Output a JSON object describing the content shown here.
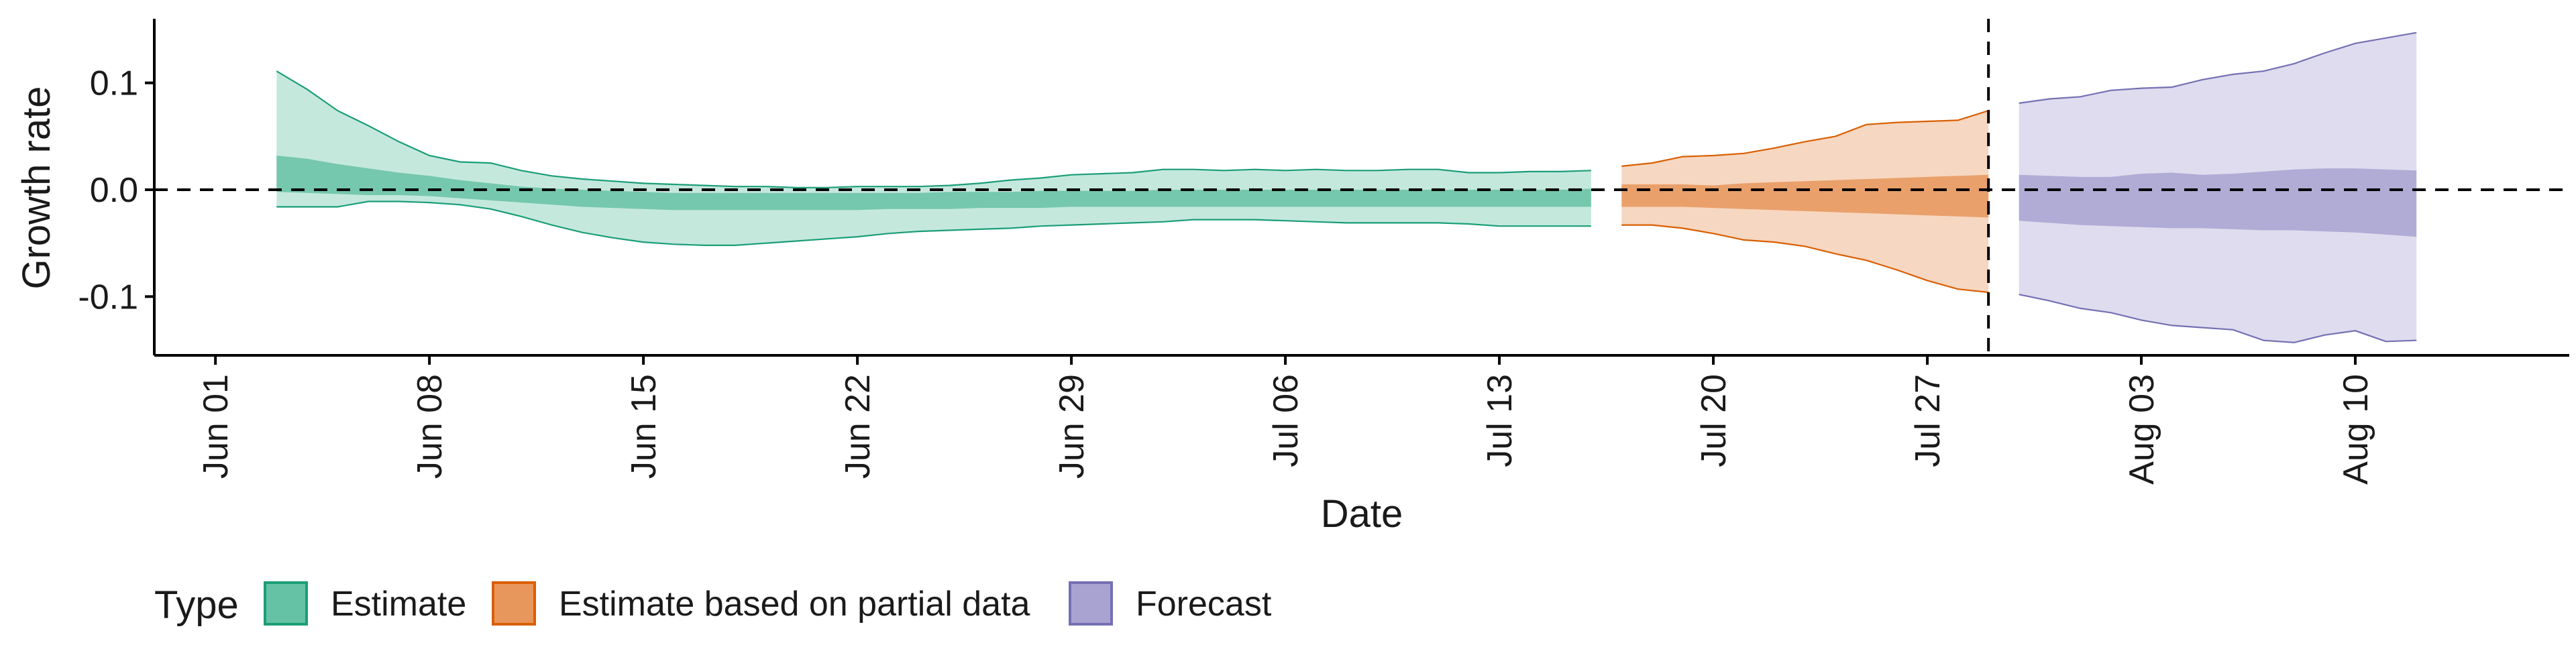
{
  "chart_data": {
    "type": "area",
    "xlabel": "Date",
    "ylabel": "Growth rate",
    "ylim": [
      -0.155,
      0.16
    ],
    "xlim": [
      "2020-05-30",
      "2020-08-17"
    ],
    "x_ticks": [
      "2020-06-01",
      "2020-06-08",
      "2020-06-15",
      "2020-06-22",
      "2020-06-29",
      "2020-07-06",
      "2020-07-13",
      "2020-07-20",
      "2020-07-27",
      "2020-08-03",
      "2020-08-10"
    ],
    "x_tick_labels": [
      "Jun 01",
      "Jun 08",
      "Jun 15",
      "Jun 22",
      "Jun 29",
      "Jul 06",
      "Jul 13",
      "Jul 20",
      "Jul 27",
      "Aug 03",
      "Aug 10"
    ],
    "y_ticks": [
      -0.1,
      0.0,
      0.1
    ],
    "y_tick_labels": [
      "-0.1",
      "0.0",
      "0.1"
    ],
    "reference_lines": [
      {
        "axis": "y",
        "value": 0.0,
        "style": "dashed"
      },
      {
        "axis": "x",
        "value": "2020-07-29",
        "style": "dashed"
      }
    ],
    "grid": false,
    "legend": {
      "title": "Type",
      "position": "bottom-left",
      "items": [
        {
          "label": "Estimate",
          "fill": "#66c2a5",
          "stroke": "#1b9e77"
        },
        {
          "label": "Estimate based on partial data",
          "fill": "#e8975c",
          "stroke": "#d95f02"
        },
        {
          "label": "Forecast",
          "fill": "#a9a3d1",
          "stroke": "#7570b3"
        }
      ]
    },
    "series": [
      {
        "type": "Estimate",
        "color": "#1b9e77",
        "x": [
          "2020-06-03",
          "2020-06-04",
          "2020-06-05",
          "2020-06-06",
          "2020-06-07",
          "2020-06-08",
          "2020-06-09",
          "2020-06-10",
          "2020-06-11",
          "2020-06-12",
          "2020-06-13",
          "2020-06-14",
          "2020-06-15",
          "2020-06-16",
          "2020-06-17",
          "2020-06-18",
          "2020-06-19",
          "2020-06-20",
          "2020-06-21",
          "2020-06-22",
          "2020-06-23",
          "2020-06-24",
          "2020-06-25",
          "2020-06-26",
          "2020-06-27",
          "2020-06-28",
          "2020-06-29",
          "2020-06-30",
          "2020-07-01",
          "2020-07-02",
          "2020-07-03",
          "2020-07-04",
          "2020-07-05",
          "2020-07-06",
          "2020-07-07",
          "2020-07-08",
          "2020-07-09",
          "2020-07-10",
          "2020-07-11",
          "2020-07-12",
          "2020-07-13",
          "2020-07-14",
          "2020-07-15",
          "2020-07-16"
        ],
        "outer_lower": [
          -0.016,
          -0.016,
          -0.016,
          -0.011,
          -0.011,
          -0.012,
          -0.014,
          -0.018,
          -0.025,
          -0.033,
          -0.04,
          -0.045,
          -0.049,
          -0.051,
          -0.052,
          -0.052,
          -0.05,
          -0.048,
          -0.046,
          -0.044,
          -0.041,
          -0.039,
          -0.038,
          -0.037,
          -0.036,
          -0.034,
          -0.033,
          -0.032,
          -0.031,
          -0.03,
          -0.028,
          -0.028,
          -0.028,
          -0.029,
          -0.03,
          -0.031,
          -0.031,
          -0.031,
          -0.031,
          -0.032,
          -0.034,
          -0.034,
          -0.034,
          -0.034
        ],
        "outer_upper": [
          0.111,
          0.094,
          0.074,
          0.06,
          0.045,
          0.032,
          0.026,
          0.025,
          0.018,
          0.013,
          0.01,
          0.008,
          0.006,
          0.005,
          0.004,
          0.003,
          0.003,
          0.002,
          0.002,
          0.003,
          0.003,
          0.003,
          0.004,
          0.006,
          0.009,
          0.011,
          0.014,
          0.015,
          0.016,
          0.019,
          0.019,
          0.018,
          0.019,
          0.018,
          0.019,
          0.018,
          0.018,
          0.019,
          0.019,
          0.016,
          0.016,
          0.017,
          0.017,
          0.018
        ],
        "inner_lower": [
          -0.002,
          -0.003,
          -0.004,
          -0.005,
          -0.005,
          -0.006,
          -0.008,
          -0.01,
          -0.012,
          -0.014,
          -0.016,
          -0.017,
          -0.018,
          -0.019,
          -0.019,
          -0.019,
          -0.019,
          -0.019,
          -0.019,
          -0.019,
          -0.018,
          -0.018,
          -0.018,
          -0.017,
          -0.017,
          -0.017,
          -0.016,
          -0.016,
          -0.016,
          -0.016,
          -0.016,
          -0.016,
          -0.016,
          -0.016,
          -0.016,
          -0.016,
          -0.016,
          -0.016,
          -0.016,
          -0.016,
          -0.016,
          -0.016,
          -0.016,
          -0.016
        ],
        "inner_upper": [
          0.032,
          0.029,
          0.024,
          0.02,
          0.016,
          0.013,
          0.009,
          0.006,
          0.003,
          0.001,
          0.0,
          -0.001,
          -0.002,
          -0.003,
          -0.003,
          -0.003,
          -0.003,
          -0.003,
          -0.003,
          -0.003,
          -0.003,
          -0.003,
          -0.002,
          -0.002,
          -0.002,
          -0.001,
          -0.001,
          -0.001,
          -0.001,
          0.0,
          0.0,
          0.0,
          0.0,
          0.0,
          0.0,
          0.0,
          0.0,
          0.0,
          0.0,
          0.0,
          0.0,
          0.0,
          0.0,
          0.001
        ]
      },
      {
        "type": "Estimate based on partial data",
        "color": "#d95f02",
        "x": [
          "2020-07-17",
          "2020-07-18",
          "2020-07-19",
          "2020-07-20",
          "2020-07-21",
          "2020-07-22",
          "2020-07-23",
          "2020-07-24",
          "2020-07-25",
          "2020-07-26",
          "2020-07-27",
          "2020-07-28",
          "2020-07-29"
        ],
        "outer_lower": [
          -0.033,
          -0.033,
          -0.036,
          -0.041,
          -0.047,
          -0.049,
          -0.053,
          -0.06,
          -0.066,
          -0.075,
          -0.085,
          -0.093,
          -0.096
        ],
        "outer_upper": [
          0.022,
          0.025,
          0.031,
          0.032,
          0.034,
          0.039,
          0.045,
          0.05,
          0.061,
          0.063,
          0.064,
          0.065,
          0.074
        ],
        "inner_lower": [
          -0.016,
          -0.016,
          -0.016,
          -0.017,
          -0.018,
          -0.019,
          -0.02,
          -0.021,
          -0.022,
          -0.023,
          -0.024,
          -0.025,
          -0.026
        ],
        "inner_upper": [
          0.005,
          0.005,
          0.005,
          0.004,
          0.006,
          0.007,
          0.008,
          0.009,
          0.01,
          0.011,
          0.012,
          0.013,
          0.014
        ]
      },
      {
        "type": "Forecast",
        "color": "#7570b3",
        "x": [
          "2020-07-30",
          "2020-07-31",
          "2020-08-01",
          "2020-08-02",
          "2020-08-03",
          "2020-08-04",
          "2020-08-05",
          "2020-08-06",
          "2020-08-07",
          "2020-08-08",
          "2020-08-09",
          "2020-08-10",
          "2020-08-11",
          "2020-08-12"
        ],
        "outer_lower": [
          -0.098,
          -0.104,
          -0.111,
          -0.115,
          -0.122,
          -0.127,
          -0.129,
          -0.131,
          -0.141,
          -0.143,
          -0.136,
          -0.132,
          -0.142,
          -0.141
        ],
        "outer_upper": [
          0.081,
          0.085,
          0.087,
          0.093,
          0.095,
          0.096,
          0.103,
          0.108,
          0.111,
          0.118,
          0.128,
          0.137,
          0.142,
          0.147
        ],
        "inner_lower": [
          -0.029,
          -0.031,
          -0.033,
          -0.034,
          -0.035,
          -0.036,
          -0.036,
          -0.037,
          -0.038,
          -0.038,
          -0.039,
          -0.04,
          -0.042,
          -0.044
        ],
        "inner_upper": [
          0.014,
          0.013,
          0.012,
          0.012,
          0.015,
          0.016,
          0.014,
          0.015,
          0.017,
          0.019,
          0.02,
          0.02,
          0.019,
          0.018
        ]
      }
    ]
  }
}
